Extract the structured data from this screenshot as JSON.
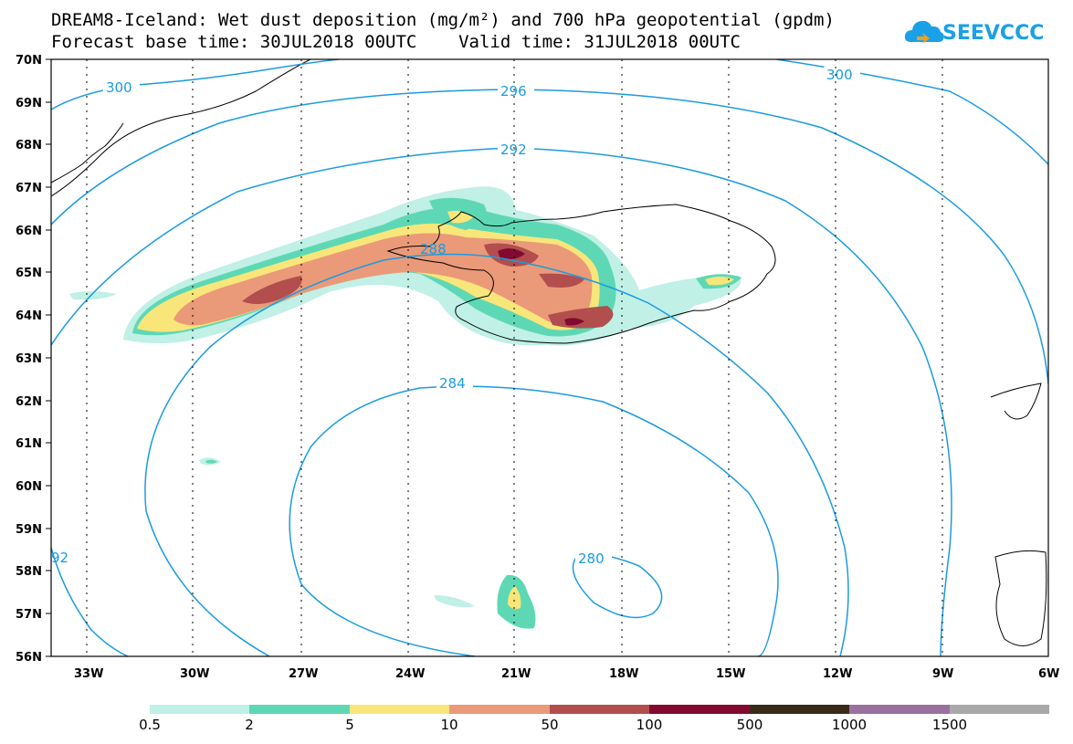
{
  "title_line1": "DREAM8-Iceland: Wet dust deposition (mg/m²) and 700 hPa geopotential (gpdm)",
  "title_line2": "Forecast base time: 30JUL2018 00UTC    Valid time: 31JUL2018 00UTC",
  "logo_text": "SEEVCCC",
  "lat_labels": [
    "70N",
    "69N",
    "68N",
    "67N",
    "66N",
    "65N",
    "64N",
    "63N",
    "62N",
    "61N",
    "60N",
    "59N",
    "58N",
    "57N",
    "56N"
  ],
  "lon_labels": [
    "33W",
    "30W",
    "27W",
    "24W",
    "21W",
    "18W",
    "15W",
    "12W",
    "9W",
    "6W"
  ],
  "contour_labels": [
    "300",
    "296",
    "292",
    "288",
    "284",
    "280",
    "300",
    "92"
  ],
  "colorbar": {
    "colors": [
      "#c0f0e6",
      "#5ed8b4",
      "#f8e67a",
      "#ea9a78",
      "#b24e4e",
      "#820a30",
      "#3a2a1a",
      "#9a70a0",
      "#a8a8a8"
    ],
    "labels": [
      "0.5",
      "2",
      "5",
      "10",
      "50",
      "100",
      "500",
      "1000",
      "1500"
    ]
  },
  "contour_color": "#1a9be0"
}
